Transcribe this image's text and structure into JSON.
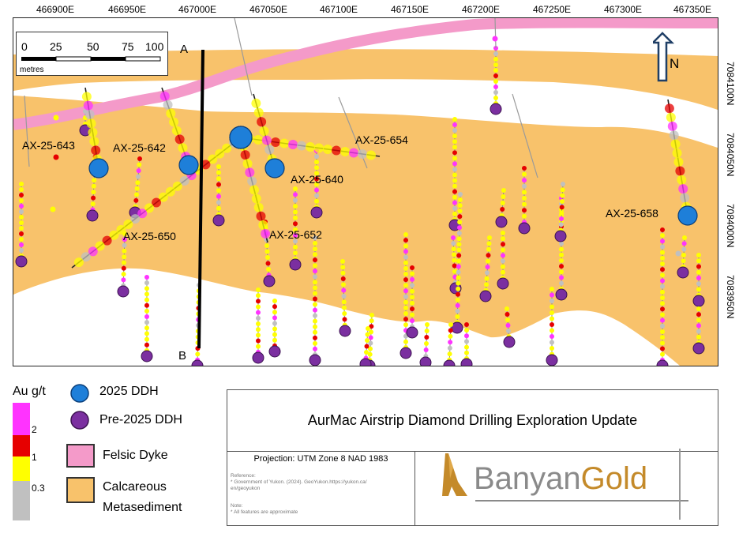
{
  "map": {
    "easting_labels": [
      "466900E",
      "466950E",
      "467000E",
      "467050E",
      "467100E",
      "467150E",
      "467200E",
      "467250E",
      "467300E",
      "467350E"
    ],
    "northing_labels": [
      "7084100N",
      "7084050N",
      "7084000N",
      "7083950N"
    ],
    "section_labels": {
      "a": "A",
      "b": "B"
    },
    "north_label": "N",
    "scale": {
      "ticks": [
        "0",
        "25",
        "50",
        "75",
        "100"
      ],
      "unit": "metres"
    },
    "hole_labels": [
      "AX-25-643",
      "AX-25-642",
      "AX-25-654",
      "AX-25-640",
      "AX-25-658",
      "AX-25-650",
      "AX-25-652"
    ],
    "colors": {
      "dyke": "#f49ac9",
      "metasediment": "#f8c26b",
      "ddh_2025": "#1e7fd9",
      "ddh_pre2025": "#7b2fa0",
      "au_high": "#ff33ff",
      "au_mid": "#e60000",
      "au_low": "#ffff00",
      "au_trace": "#c0c0c0"
    }
  },
  "legend": {
    "title": "Au g/t",
    "colorbar_labels": [
      "2",
      "1",
      "0.3"
    ],
    "ddh_2025": "2025 DDH",
    "ddh_pre2025": "Pre-2025 DDH",
    "felsic_dyke": "Felsic Dyke",
    "metasediment_line1": "Calcareous",
    "metasediment_line2": "Metasediment"
  },
  "title_block": {
    "title": "AurMac Airstrip Diamond Drilling Exploration Update",
    "projection": "Projection: UTM Zone 8 NAD 1983",
    "reference_label": "Reference:",
    "reference_line1": "* Government of Yukon. (2024). GeoYukon.https://yukon.ca/",
    "reference_line2": "en/geoyukon",
    "note_label": "Note:",
    "note_line1": "* All features are approximate",
    "logo_part1": "Banyan",
    "logo_part2": "Gold"
  }
}
